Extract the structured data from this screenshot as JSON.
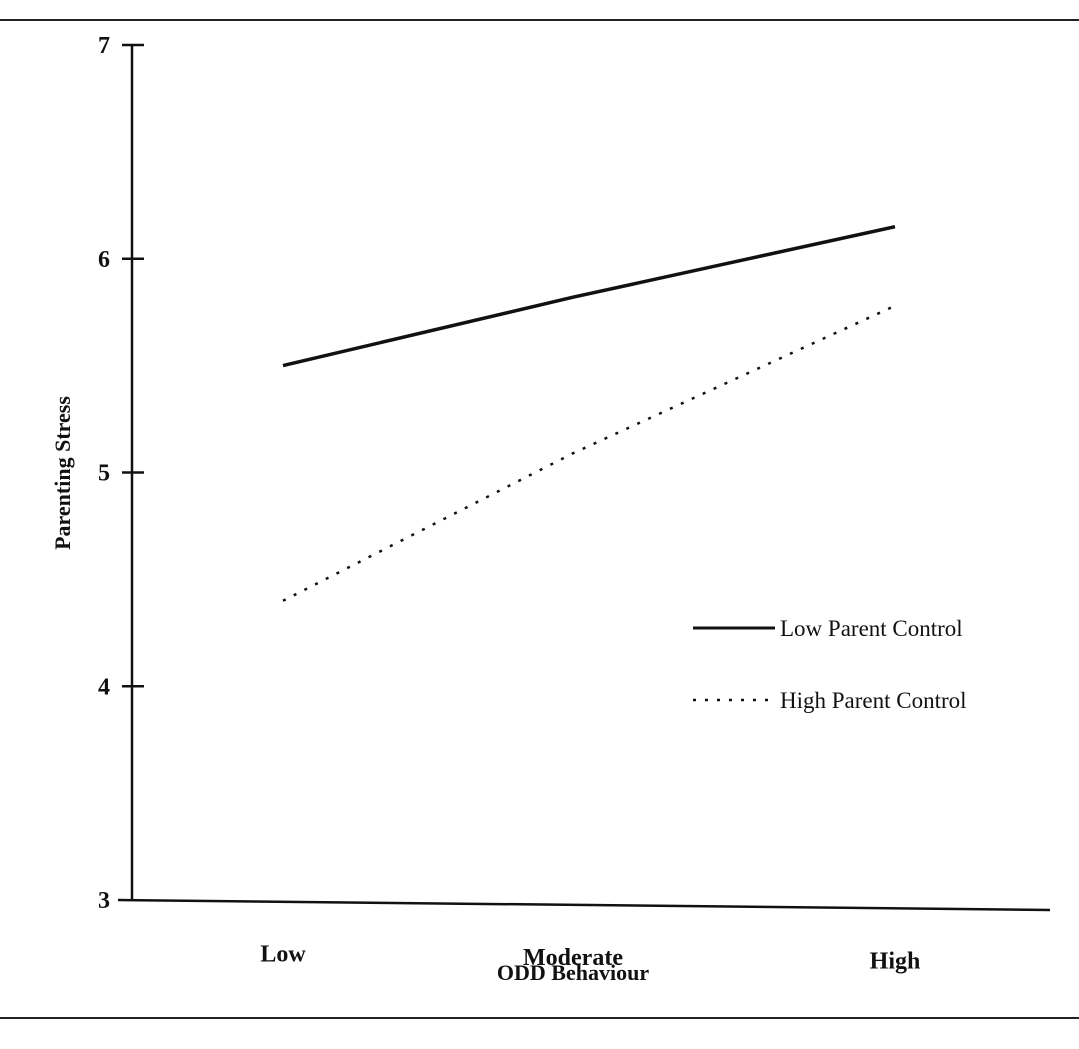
{
  "chart_data": {
    "type": "line",
    "xlabel": "ODD Behaviour",
    "ylabel": "Parenting Stress",
    "categories": [
      "Low",
      "Moderate",
      "High"
    ],
    "ylim": [
      3,
      7
    ],
    "yticks": [
      3,
      4,
      5,
      6,
      7
    ],
    "grid": false,
    "legend_position": "right",
    "series": [
      {
        "name": "Low Parent Control",
        "style": "solid",
        "values": [
          5.5,
          5.82,
          6.15
        ]
      },
      {
        "name": "High Parent Control",
        "style": "dotted",
        "values": [
          4.4,
          5.09,
          5.78
        ]
      }
    ],
    "colors": {
      "line": "#111111",
      "axis": "#111111"
    }
  }
}
